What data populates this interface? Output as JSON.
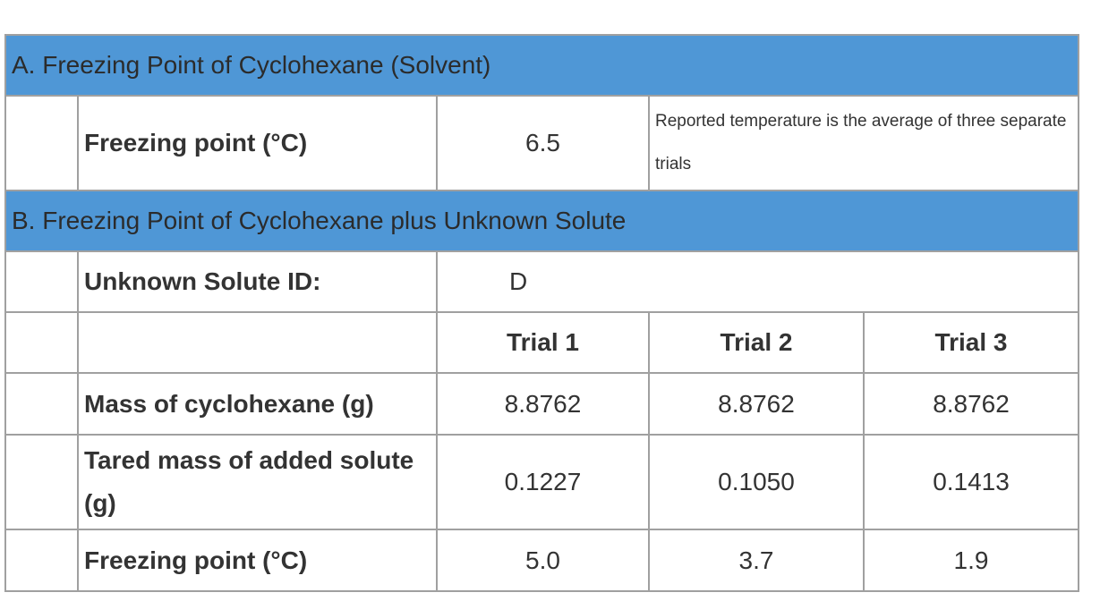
{
  "section_a": {
    "title": "A. Freezing Point of Cyclohexane (Solvent)",
    "freezing_label": "Freezing point (°C)",
    "freezing_value": "6.5",
    "note": "Reported temperature is the average of three separate trials"
  },
  "section_b": {
    "title": "B. Freezing Point of Cyclohexane plus Unknown Solute",
    "unknown_id_label": "Unknown Solute ID:",
    "unknown_id_value": "D",
    "trial_headers": [
      "Trial 1",
      "Trial 2",
      "Trial 3"
    ],
    "rows": [
      {
        "label": "Mass of cyclohexane (g)",
        "values": [
          "8.8762",
          "8.8762",
          "8.8762"
        ]
      },
      {
        "label": "Tared mass of added solute (g)",
        "values": [
          "0.1227",
          "0.1050",
          "0.1413"
        ]
      },
      {
        "label": "Freezing point (°C)",
        "values": [
          "5.0",
          "3.7",
          "1.9"
        ]
      }
    ]
  },
  "colors": {
    "section_header_bg": "#4f97d6",
    "border": "#a0a0a0"
  }
}
